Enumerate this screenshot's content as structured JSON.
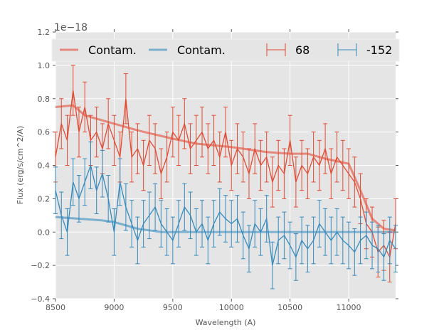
{
  "chart_data": {
    "type": "line",
    "title": "",
    "xlabel": "Wavelength (A)",
    "ylabel": "Flux (erg/s/cm^2/A)",
    "y_offset_text": "1e−18",
    "xlim": [
      8500,
      11400
    ],
    "ylim": [
      -0.4,
      1.2
    ],
    "xticks": [
      8500,
      9000,
      9500,
      10000,
      10500,
      11000
    ],
    "yticks": [
      -0.4,
      -0.2,
      0.0,
      0.2,
      0.4,
      0.6,
      0.8,
      1.0,
      1.2
    ],
    "ytick_labels": [
      "−0.4",
      "−0.2",
      "0.0",
      "0.2",
      "0.4",
      "0.6",
      "0.8",
      "1.0",
      "1.2"
    ],
    "grid": true,
    "legend_placement": "top",
    "legend": [
      {
        "label": "Contam.",
        "kind": "line",
        "color": "#e24a33"
      },
      {
        "label": "Contam.",
        "kind": "line",
        "color": "#348abd"
      },
      {
        "label": "68",
        "kind": "errorbar",
        "color": "#e24a33"
      },
      {
        "label": "-152",
        "kind": "errorbar",
        "color": "#348abd"
      }
    ],
    "x": [
      8500,
      8550,
      8600,
      8650,
      8700,
      8750,
      8800,
      8850,
      8900,
      8950,
      9000,
      9050,
      9100,
      9150,
      9200,
      9250,
      9300,
      9350,
      9400,
      9450,
      9500,
      9550,
      9600,
      9650,
      9700,
      9750,
      9800,
      9850,
      9900,
      9950,
      10000,
      10050,
      10100,
      10150,
      10200,
      10250,
      10300,
      10350,
      10400,
      10450,
      10500,
      10550,
      10600,
      10650,
      10700,
      10750,
      10800,
      10850,
      10900,
      10950,
      11000,
      11050,
      11100,
      11150,
      11200,
      11250,
      11300,
      11350,
      11400
    ],
    "series": [
      {
        "name": "68",
        "color": "#e24a33",
        "yerr": 0.15,
        "values": [
          0.45,
          0.65,
          0.55,
          0.85,
          0.6,
          0.75,
          0.55,
          0.6,
          0.5,
          0.65,
          0.55,
          0.45,
          0.8,
          0.45,
          0.5,
          0.4,
          0.55,
          0.5,
          0.35,
          0.45,
          0.6,
          0.55,
          0.65,
          0.5,
          0.55,
          0.6,
          0.5,
          0.55,
          0.45,
          0.6,
          0.4,
          0.5,
          0.45,
          0.35,
          0.5,
          0.4,
          0.45,
          0.3,
          0.4,
          0.35,
          0.55,
          0.3,
          0.4,
          0.35,
          0.45,
          0.4,
          0.5,
          0.35,
          0.45,
          0.4,
          0.35,
          0.3,
          0.2,
          0.05,
          0.0,
          -0.12,
          -0.08,
          -0.15,
          0.05
        ]
      },
      {
        "name": "-152",
        "color": "#348abd",
        "yerr": 0.14,
        "values": [
          0.25,
          0.1,
          0.0,
          0.3,
          0.2,
          0.3,
          0.4,
          0.25,
          0.35,
          0.2,
          0.0,
          0.3,
          0.15,
          0.05,
          -0.05,
          0.05,
          0.1,
          0.15,
          0.05,
          0.0,
          -0.05,
          0.05,
          0.15,
          0.1,
          0.0,
          0.05,
          -0.05,
          0.05,
          0.12,
          0.08,
          0.05,
          0.08,
          -0.02,
          -0.1,
          0.05,
          0.0,
          0.08,
          -0.2,
          -0.05,
          -0.02,
          -0.08,
          -0.15,
          -0.05,
          -0.1,
          -0.05,
          0.05,
          0.0,
          -0.05,
          0.0,
          -0.05,
          -0.08,
          -0.12,
          -0.05,
          -0.02,
          -0.08,
          -0.1,
          -0.15,
          -0.05,
          -0.1
        ]
      }
    ],
    "contamination": [
      {
        "name": "Contam.",
        "color": "#e24a33",
        "x": [
          8500,
          8650,
          8750,
          9000,
          9100,
          9200,
          9500,
          9700,
          10000,
          10300,
          10500,
          10650,
          10800,
          11000,
          11100,
          11200,
          11300,
          11400
        ],
        "values": [
          0.75,
          0.76,
          0.7,
          0.65,
          0.63,
          0.61,
          0.56,
          0.53,
          0.51,
          0.48,
          0.47,
          0.47,
          0.44,
          0.41,
          0.25,
          0.08,
          0.02,
          0.01
        ]
      },
      {
        "name": "Contam.",
        "color": "#348abd",
        "x": [
          8500,
          8700,
          8900,
          9000,
          9100,
          9200,
          9400,
          11400
        ],
        "values": [
          0.09,
          0.08,
          0.07,
          0.06,
          0.04,
          0.02,
          0.0,
          0.0
        ]
      }
    ]
  }
}
